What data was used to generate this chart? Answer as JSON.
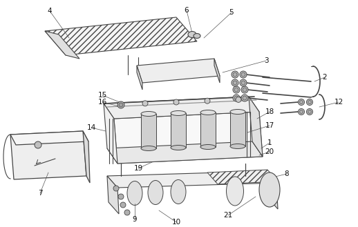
{
  "bg_color": "#ffffff",
  "lc": "#444444",
  "lc2": "#666666",
  "fc_light": "#f2f2f2",
  "fc_mid": "#e0e0e0",
  "fc_dark": "#c8c8c8",
  "fc_white": "#ffffff"
}
